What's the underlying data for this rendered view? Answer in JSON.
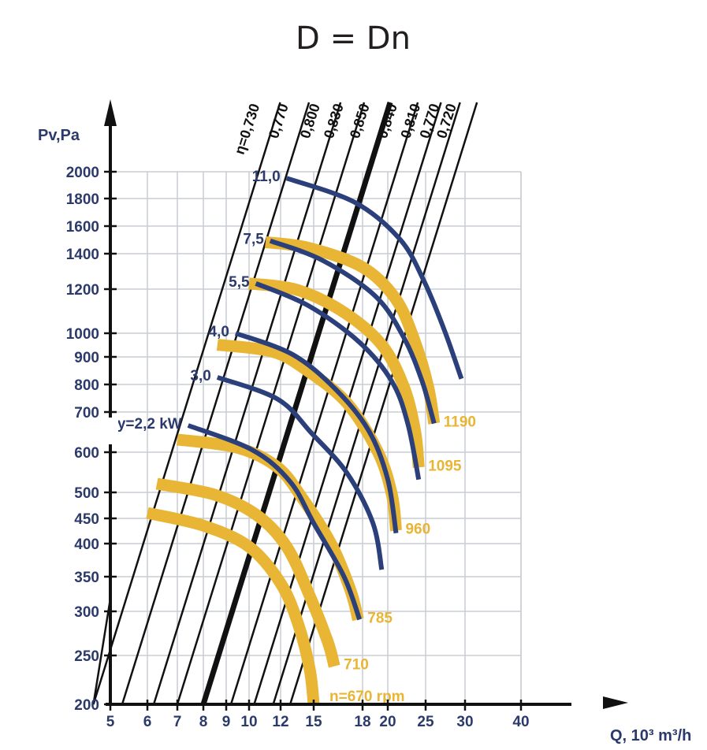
{
  "chart_data": {
    "type": "line",
    "title": "D = Dn",
    "xlabel": "Q, 10³ m³/h",
    "ylabel": "Pv,Pa",
    "x_scale": "log",
    "y_scale": "log",
    "xlim": [
      5,
      50
    ],
    "ylim": [
      200,
      2000
    ],
    "x_ticks": [
      {
        "v": 5,
        "t": "5"
      },
      {
        "v": 6,
        "t": "6"
      },
      {
        "v": 7,
        "t": "7"
      },
      {
        "v": 8,
        "t": "8"
      },
      {
        "v": 9,
        "t": "9"
      },
      {
        "v": 10,
        "t": "10"
      },
      {
        "v": 12,
        "t": "12"
      },
      {
        "v": 15,
        "t": "15"
      },
      {
        "v": 18,
        "t": "18"
      },
      {
        "v": 20,
        "t": "20"
      },
      {
        "v": 25,
        "t": "25"
      },
      {
        "v": 30,
        "t": "30"
      },
      {
        "v": 40,
        "t": "40"
      }
    ],
    "y_ticks": [
      {
        "v": 200,
        "t": "200"
      },
      {
        "v": 250,
        "t": "250"
      },
      {
        "v": 300,
        "t": "300"
      },
      {
        "v": 350,
        "t": "350"
      },
      {
        "v": 400,
        "t": "400"
      },
      {
        "v": 450,
        "t": "450"
      },
      {
        "v": 500,
        "t": "500"
      },
      {
        "v": 600,
        "t": "600"
      },
      {
        "v": 700,
        "t": "700"
      },
      {
        "v": 800,
        "t": "800"
      },
      {
        "v": 900,
        "t": "900"
      },
      {
        "v": 1000,
        "t": "1000"
      },
      {
        "v": 1200,
        "t": "1200"
      },
      {
        "v": 1400,
        "t": "1400"
      },
      {
        "v": 1600,
        "t": "1600"
      },
      {
        "v": 1800,
        "t": "1800"
      },
      {
        "v": 2000,
        "t": "2000"
      }
    ],
    "grid": true,
    "efficiency_lines": [
      {
        "label": "η=0,730",
        "q_at_200": 4.6,
        "bold": false
      },
      {
        "label": "0,770",
        "q_at_200": 5.3,
        "bold": false
      },
      {
        "label": "0,800",
        "q_at_200": 6.2,
        "bold": false
      },
      {
        "label": "0,830",
        "q_at_200": 7.0,
        "bold": false
      },
      {
        "label": "0,850",
        "q_at_200": 8.0,
        "bold": true
      },
      {
        "label": "0,840",
        "q_at_200": 9.2,
        "bold": false
      },
      {
        "label": "0,810",
        "q_at_200": 10.3,
        "bold": false
      },
      {
        "label": "0,770",
        "q_at_200": 11.5,
        "bold": false
      },
      {
        "label": "0,720",
        "q_at_200": 12.8,
        "bold": false
      }
    ],
    "speed_curves": [
      {
        "label": "n=670 rpm",
        "rpm": 670,
        "points": [
          [
            6.0,
            460
          ],
          [
            8.0,
            435
          ],
          [
            10.0,
            395
          ],
          [
            12.0,
            340
          ],
          [
            13.5,
            285
          ],
          [
            14.6,
            235
          ],
          [
            15.0,
            200
          ]
        ]
      },
      {
        "label": "710",
        "rpm": 710,
        "points": [
          [
            6.3,
            520
          ],
          [
            8.5,
            495
          ],
          [
            10.5,
            455
          ],
          [
            12.5,
            395
          ],
          [
            14.5,
            325
          ],
          [
            15.8,
            265
          ],
          [
            16.2,
            238
          ]
        ]
      },
      {
        "label": "785",
        "rpm": 785,
        "points": [
          [
            7.0,
            630
          ],
          [
            9.5,
            610
          ],
          [
            11.8,
            560
          ],
          [
            14.0,
            485
          ],
          [
            16.0,
            400
          ],
          [
            17.2,
            330
          ],
          [
            17.7,
            290
          ]
        ]
      },
      {
        "label": "960",
        "rpm": 960,
        "points": [
          [
            8.6,
            950
          ],
          [
            11.5,
            920
          ],
          [
            14.5,
            845
          ],
          [
            17.0,
            730
          ],
          [
            19.2,
            600
          ],
          [
            20.5,
            495
          ],
          [
            21.0,
            425
          ]
        ]
      },
      {
        "label": "1095",
        "rpm": 1095,
        "points": [
          [
            10.0,
            1230
          ],
          [
            13.5,
            1195
          ],
          [
            16.8,
            1090
          ],
          [
            19.5,
            950
          ],
          [
            22.0,
            790
          ],
          [
            23.5,
            650
          ],
          [
            24.0,
            560
          ]
        ]
      },
      {
        "label": "1190",
        "rpm": 1190,
        "points": [
          [
            11.0,
            1480
          ],
          [
            14.5,
            1440
          ],
          [
            18.0,
            1320
          ],
          [
            21.0,
            1150
          ],
          [
            23.5,
            960
          ],
          [
            25.3,
            790
          ],
          [
            26.0,
            670
          ]
        ]
      }
    ],
    "power_curves": [
      {
        "label": "Ny=2,2 kW",
        "points": [
          [
            7.4,
            665
          ],
          [
            10.2,
            605
          ],
          [
            12.8,
            525
          ],
          [
            15.0,
            440
          ],
          [
            16.8,
            350
          ],
          [
            17.8,
            290
          ]
        ]
      },
      {
        "label": "3,0",
        "points": [
          [
            8.6,
            825
          ],
          [
            11.8,
            745
          ],
          [
            14.8,
            645
          ],
          [
            17.0,
            545
          ],
          [
            18.8,
            440
          ],
          [
            19.5,
            360
          ]
        ]
      },
      {
        "label": "4,0",
        "points": [
          [
            9.4,
            1000
          ],
          [
            13.0,
            910
          ],
          [
            16.3,
            780
          ],
          [
            18.5,
            650
          ],
          [
            20.0,
            530
          ],
          [
            21.0,
            420
          ]
        ]
      },
      {
        "label": "5,5",
        "points": [
          [
            10.4,
            1230
          ],
          [
            14.5,
            1120
          ],
          [
            17.8,
            960
          ],
          [
            20.5,
            810
          ],
          [
            22.5,
            670
          ],
          [
            24.0,
            530
          ]
        ]
      },
      {
        "label": "7,5",
        "points": [
          [
            11.3,
            1490
          ],
          [
            15.5,
            1360
          ],
          [
            19.0,
            1165
          ],
          [
            22.0,
            980
          ],
          [
            24.5,
            810
          ],
          [
            26.0,
            670
          ]
        ]
      },
      {
        "label": "11,0",
        "points": [
          [
            12.5,
            1950
          ],
          [
            17.5,
            1770
          ],
          [
            21.5,
            1500
          ],
          [
            24.8,
            1240
          ],
          [
            27.3,
            1010
          ],
          [
            29.5,
            820
          ]
        ]
      }
    ]
  }
}
